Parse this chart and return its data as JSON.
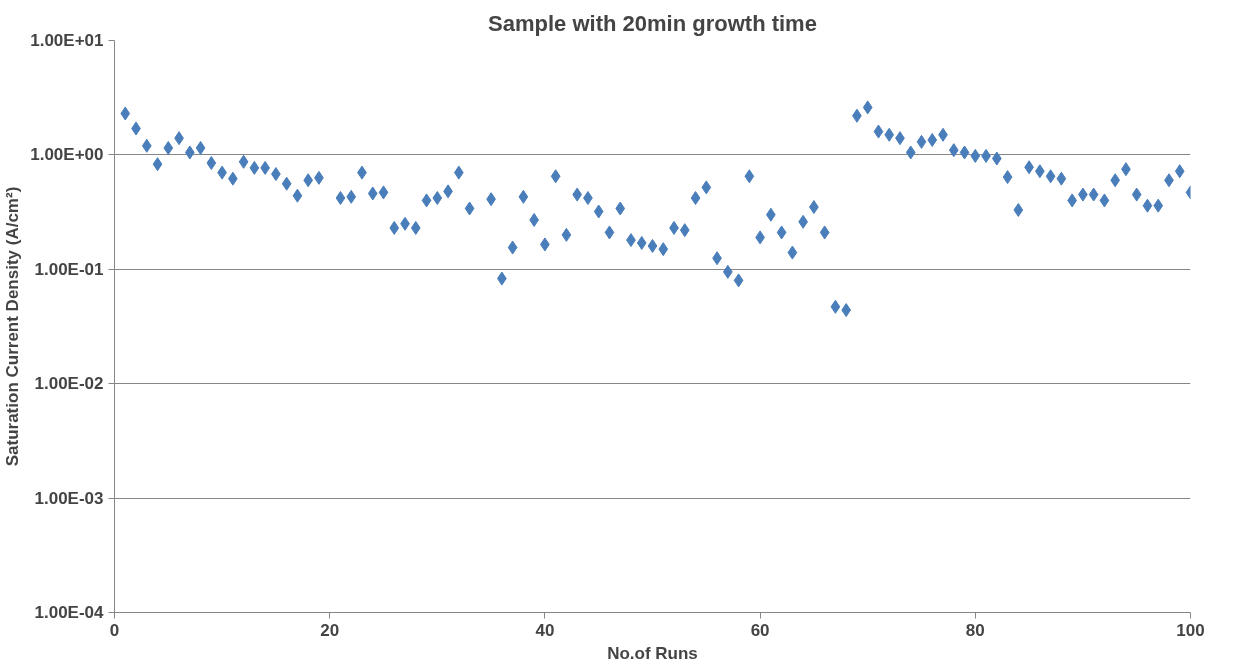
{
  "chart_data": {
    "type": "scatter",
    "title": "Sample with 20min growth time",
    "xlabel": "No.of Runs",
    "ylabel": "Saturation Current Density (A/cm²)",
    "x": [
      1,
      2,
      3,
      4,
      5,
      6,
      7,
      8,
      9,
      10,
      11,
      12,
      13,
      14,
      15,
      16,
      17,
      18,
      19,
      21,
      22,
      23,
      24,
      25,
      26,
      27,
      28,
      29,
      30,
      31,
      32,
      33,
      35,
      36,
      37,
      38,
      39,
      40,
      41,
      42,
      43,
      44,
      45,
      46,
      47,
      48,
      49,
      50,
      51,
      52,
      53,
      54,
      55,
      56,
      57,
      58,
      59,
      60,
      61,
      62,
      63,
      64,
      65,
      66,
      67,
      68,
      69,
      70,
      71,
      72,
      73,
      74,
      75,
      76,
      77,
      78,
      79,
      80,
      81,
      82,
      83,
      84,
      85,
      86,
      87,
      88,
      89,
      90,
      91,
      92,
      93,
      94,
      95,
      96,
      97,
      98,
      99,
      100
    ],
    "series": [
      {
        "color": "#4a7ebb",
        "values": [
          2.3,
          1.7,
          1.2,
          0.83,
          1.15,
          1.4,
          1.05,
          1.15,
          0.85,
          0.7,
          0.62,
          0.87,
          0.77,
          0.77,
          0.68,
          0.56,
          0.44,
          0.6,
          0.63,
          0.42,
          0.43,
          0.7,
          0.46,
          0.47,
          0.23,
          0.25,
          0.23,
          0.4,
          0.42,
          0.48,
          0.7,
          0.34,
          0.41,
          0.083,
          0.155,
          0.43,
          0.27,
          0.165,
          0.65,
          0.2,
          0.45,
          0.42,
          0.32,
          0.21,
          0.34,
          0.18,
          0.17,
          0.16,
          0.15,
          0.23,
          0.22,
          0.42,
          0.52,
          0.125,
          0.095,
          0.08,
          0.65,
          0.19,
          0.3,
          0.21,
          0.14,
          0.26,
          0.35,
          0.21,
          0.047,
          0.044,
          2.2,
          2.6,
          1.6,
          1.5,
          1.4,
          1.05,
          1.3,
          1.35,
          1.5,
          1.1,
          1.05,
          0.98,
          0.98,
          0.93,
          0.64,
          0.33,
          0.78,
          0.72,
          0.65,
          0.62,
          0.4,
          0.45,
          0.45,
          0.4,
          0.6,
          0.75,
          0.45,
          0.36,
          0.36,
          0.6,
          0.72,
          0.47
        ]
      }
    ],
    "xlim": [
      0,
      100
    ],
    "xticks": [
      0,
      20,
      40,
      60,
      80,
      100
    ],
    "ylim": [
      0.0001,
      10
    ],
    "yticks": [
      {
        "value": 0.0001,
        "label": "1.00E-04"
      },
      {
        "value": 0.001,
        "label": "1.00E-03"
      },
      {
        "value": 0.01,
        "label": "1.00E-02"
      },
      {
        "value": 0.1,
        "label": "1.00E-01"
      },
      {
        "value": 1,
        "label": "1.00E+00"
      },
      {
        "value": 10,
        "label": "1.00E+01"
      }
    ],
    "log": "y",
    "grid": "y",
    "marker": "diamond"
  }
}
